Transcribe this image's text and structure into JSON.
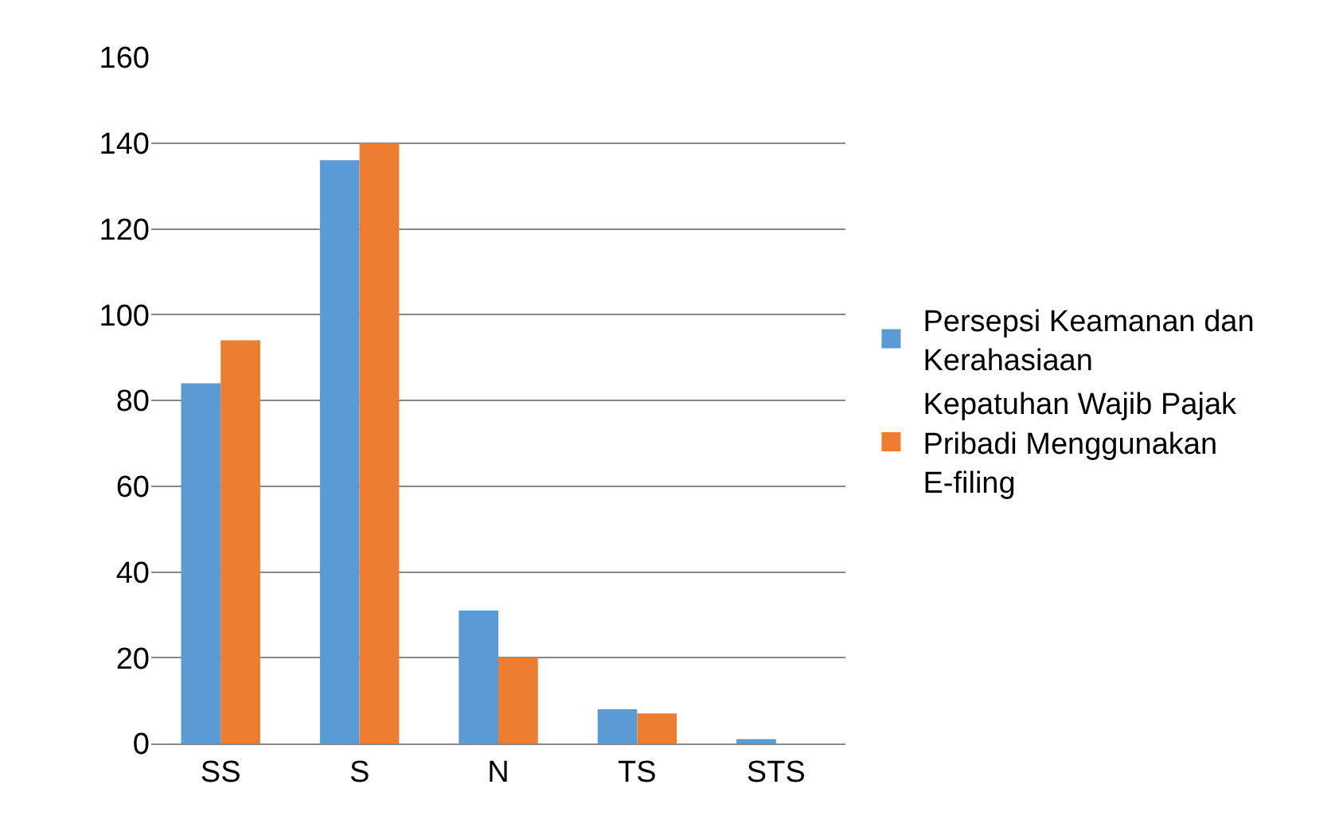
{
  "chart_data": {
    "type": "bar",
    "categories": [
      "SS",
      "S",
      "N",
      "TS",
      "STS"
    ],
    "series": [
      {
        "name": "Persepsi Keamanan dan Kerahasiaan",
        "color": "#5b9bd5",
        "values": [
          84,
          136,
          31,
          8,
          1
        ]
      },
      {
        "name": "Kepatuhan Wajib Pajak Pribadi Menggunakan E-filing",
        "color": "#ed7d31",
        "values": [
          94,
          140,
          20,
          7,
          0
        ]
      }
    ],
    "ylim": [
      0,
      160
    ],
    "yticks": [
      0,
      20,
      40,
      60,
      80,
      100,
      120,
      140,
      160
    ],
    "grid": "y",
    "legend": "right"
  }
}
